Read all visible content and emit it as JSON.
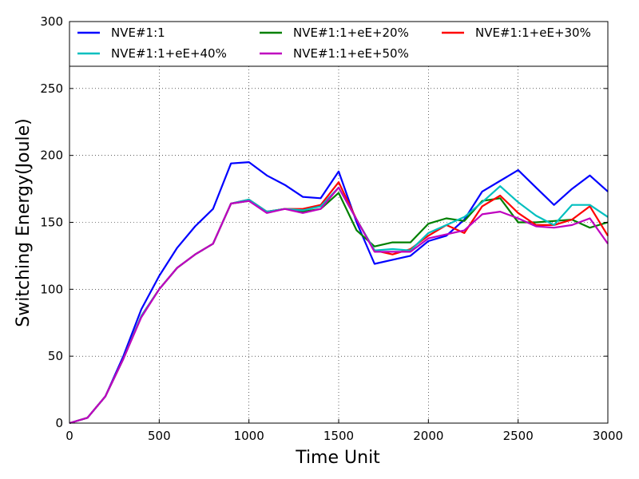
{
  "chart_data": {
    "type": "line",
    "xlabel": "Time Unit",
    "ylabel": "Switching Energy(Joule)",
    "xlim": [
      0,
      3000
    ],
    "ylim": [
      0,
      300
    ],
    "xticks": [
      0,
      500,
      1000,
      1500,
      2000,
      2500,
      3000
    ],
    "yticks": [
      0,
      50,
      100,
      150,
      200,
      250,
      300
    ],
    "grid": true,
    "legend_placement": "top",
    "x": [
      0,
      100,
      200,
      300,
      400,
      500,
      600,
      700,
      800,
      900,
      1000,
      1100,
      1200,
      1300,
      1400,
      1500,
      1600,
      1700,
      1800,
      1900,
      2000,
      2100,
      2200,
      2300,
      2400,
      2500,
      2600,
      2700,
      2800,
      2900,
      3000
    ],
    "series": [
      {
        "name": "NVE#1:1",
        "color": "#0000ff",
        "values": [
          0,
          4,
          20,
          50,
          85,
          110,
          131,
          147,
          160,
          194,
          195,
          185,
          178,
          169,
          168,
          188,
          150,
          119,
          122,
          125,
          136,
          140,
          152,
          173,
          181,
          189,
          176,
          163,
          175,
          185,
          173
        ]
      },
      {
        "name": "NVE#1:1+eE+20%",
        "color": "#008000",
        "values": [
          0,
          4,
          20,
          48,
          80,
          100,
          116,
          126,
          134,
          164,
          166,
          158,
          160,
          158,
          160,
          172,
          144,
          132,
          135,
          135,
          149,
          153,
          151,
          166,
          168,
          150,
          150,
          151,
          152,
          146,
          150
        ]
      },
      {
        "name": "NVE#1:1+eE+30%",
        "color": "#ff0000",
        "values": [
          0,
          4,
          20,
          48,
          80,
          100,
          116,
          126,
          134,
          164,
          167,
          158,
          160,
          160,
          163,
          180,
          152,
          129,
          126,
          130,
          140,
          148,
          142,
          162,
          170,
          157,
          148,
          148,
          152,
          162,
          140
        ]
      },
      {
        "name": "NVE#1:1+eE+40%",
        "color": "#00bfbf",
        "values": [
          0,
          4,
          20,
          48,
          80,
          100,
          116,
          126,
          134,
          164,
          167,
          158,
          160,
          159,
          162,
          176,
          152,
          129,
          130,
          129,
          142,
          148,
          154,
          165,
          177,
          165,
          155,
          148,
          163,
          163,
          154
        ]
      },
      {
        "name": "NVE#1:1+eE+50%",
        "color": "#bf00bf",
        "values": [
          0,
          4,
          20,
          48,
          79,
          100,
          116,
          126,
          134,
          164,
          166,
          157,
          160,
          157,
          160,
          176,
          152,
          128,
          128,
          128,
          138,
          141,
          144,
          156,
          158,
          153,
          147,
          146,
          148,
          153,
          134
        ]
      }
    ]
  }
}
